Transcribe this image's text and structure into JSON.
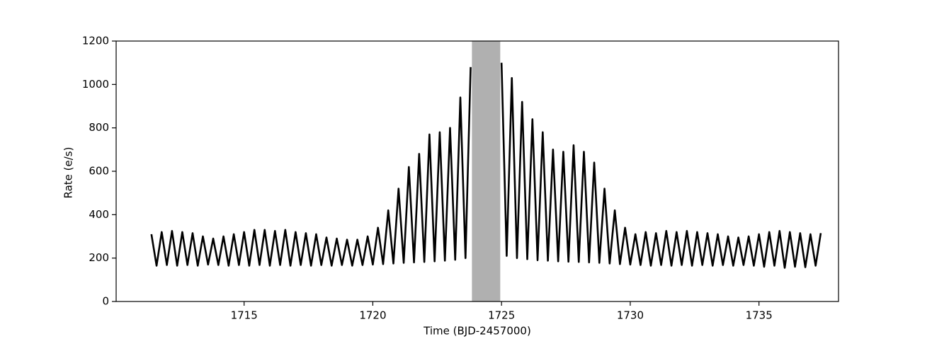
{
  "chart_data": {
    "type": "line",
    "xlabel": "Time (BJD-2457000)",
    "ylabel": "Rate (e/s)",
    "xlim": [
      1710.03,
      1738.09
    ],
    "ylim": [
      0,
      1200
    ],
    "xticks": [
      1715,
      1720,
      1725,
      1730,
      1735
    ],
    "yticks": [
      0,
      200,
      400,
      600,
      800,
      1000,
      1200
    ],
    "shaded_region": {
      "xlim": [
        1723.85,
        1724.95
      ],
      "color": "#b0b0b0"
    },
    "x": [
      1711.4,
      1711.6,
      1711.8,
      1712,
      1712.2,
      1712.4,
      1712.6,
      1712.8,
      1713,
      1713.2,
      1713.4,
      1713.6,
      1713.8,
      1714,
      1714.2,
      1714.4,
      1714.6,
      1714.8,
      1715,
      1715.2,
      1715.4,
      1715.6,
      1715.8,
      1716,
      1716.2,
      1716.4,
      1716.6,
      1716.8,
      1717,
      1717.2,
      1717.4,
      1717.6,
      1717.8,
      1718,
      1718.2,
      1718.4,
      1718.6,
      1718.8,
      1719,
      1719.2,
      1719.4,
      1719.6,
      1719.8,
      1720,
      1720.2,
      1720.4,
      1720.6,
      1720.8,
      1721,
      1721.2,
      1721.4,
      1721.6,
      1721.8,
      1722,
      1722.2,
      1722.4,
      1722.6,
      1722.8,
      1723,
      1723.2,
      1723.4,
      1723.6,
      1723.8,
      1724.4,
      1725,
      1725.2,
      1725.4,
      1725.6,
      1725.8,
      1726,
      1726.2,
      1726.4,
      1726.6,
      1726.8,
      1727,
      1727.2,
      1727.4,
      1727.6,
      1727.8,
      1728,
      1728.2,
      1728.4,
      1728.6,
      1728.8,
      1729,
      1729.2,
      1729.4,
      1729.6,
      1729.8,
      1730,
      1730.2,
      1730.4,
      1730.6,
      1730.8,
      1731,
      1731.2,
      1731.4,
      1731.6,
      1731.8,
      1732,
      1732.2,
      1732.4,
      1732.6,
      1732.8,
      1733,
      1733.2,
      1733.4,
      1733.6,
      1733.8,
      1734,
      1734.2,
      1734.4,
      1734.6,
      1734.8,
      1735,
      1735.2,
      1735.4,
      1735.6,
      1735.8,
      1736,
      1736.2,
      1736.4,
      1736.6,
      1736.8,
      1737,
      1737.2,
      1737.4
    ],
    "series": [
      {
        "color": "#000000",
        "values": [
          310,
          165,
          320,
          168,
          325,
          165,
          320,
          168,
          315,
          165,
          300,
          170,
          290,
          168,
          300,
          165,
          310,
          168,
          320,
          165,
          330,
          168,
          330,
          165,
          325,
          168,
          330,
          165,
          320,
          168,
          315,
          165,
          310,
          168,
          295,
          165,
          290,
          168,
          285,
          165,
          285,
          168,
          300,
          170,
          340,
          172,
          420,
          175,
          520,
          178,
          620,
          180,
          680,
          182,
          770,
          185,
          780,
          188,
          800,
          192,
          940,
          200,
          1080,
          null,
          1100,
          210,
          1030,
          200,
          920,
          195,
          840,
          190,
          780,
          188,
          700,
          185,
          690,
          183,
          720,
          182,
          690,
          180,
          640,
          178,
          520,
          175,
          420,
          172,
          340,
          170,
          310,
          168,
          320,
          165,
          315,
          168,
          325,
          165,
          320,
          168,
          325,
          165,
          320,
          168,
          315,
          165,
          310,
          168,
          300,
          165,
          295,
          168,
          300,
          165,
          310,
          160,
          320,
          165,
          325,
          155,
          320,
          160,
          315,
          158,
          310,
          165,
          315
        ]
      }
    ]
  }
}
